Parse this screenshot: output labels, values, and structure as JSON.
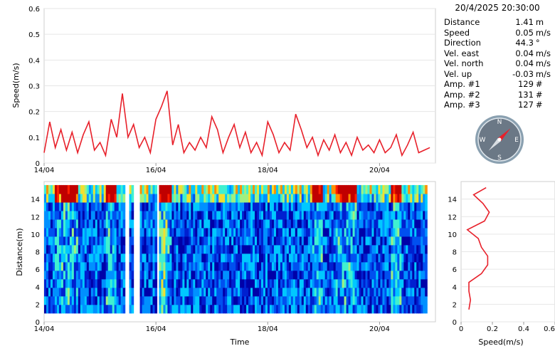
{
  "info": {
    "timestamp": "20/4/2025 20:30:00",
    "rows": [
      {
        "label": "Distance",
        "value": "1.41",
        "unit": "m"
      },
      {
        "label": "Speed",
        "value": "0.05",
        "unit": "m/s"
      },
      {
        "label": "Direction",
        "value": "44.3",
        "unit": "°"
      },
      {
        "label": "Vel. east",
        "value": "0.04",
        "unit": "m/s"
      },
      {
        "label": "Vel. north",
        "value": "0.04",
        "unit": "m/s"
      },
      {
        "label": "Vel. up",
        "value": "-0.03",
        "unit": "m/s"
      },
      {
        "label": "Amp. #1",
        "value": "129",
        "unit": "#"
      },
      {
        "label": "Amp. #2",
        "value": "131",
        "unit": "#"
      },
      {
        "label": "Amp. #3",
        "value": "127",
        "unit": "#"
      }
    ]
  },
  "compass": {
    "labels": {
      "n": "N",
      "e": "E",
      "s": "S",
      "w": "W"
    },
    "direction_deg": 44.3,
    "face_color": "#6b7886",
    "needle_color": "#e8202a"
  },
  "chart_data": [
    {
      "type": "line",
      "ylabel": "Speed(m/s)",
      "xlabel": "",
      "ylim": [
        0,
        0.6
      ],
      "yticks": [
        "0",
        "0.1",
        "0.2",
        "0.3",
        "0.4",
        "0.5",
        "0.6"
      ],
      "xticks": [
        "14/04",
        "16/04",
        "18/04",
        "20/04"
      ],
      "x_range_days": [
        14.0,
        21.0
      ],
      "grid": "horizontal",
      "color": "#e8202a",
      "series": [
        {
          "x": [
            14.0,
            14.1,
            14.2,
            14.3,
            14.4,
            14.5,
            14.6,
            14.7,
            14.8,
            14.9,
            15.0,
            15.1,
            15.2,
            15.3,
            15.4,
            15.5,
            15.6,
            15.7,
            15.8,
            15.9,
            16.0,
            16.1,
            16.2,
            16.3,
            16.4,
            16.5,
            16.6,
            16.7,
            16.8,
            16.9,
            17.0,
            17.1,
            17.2,
            17.3,
            17.4,
            17.5,
            17.6,
            17.7,
            17.8,
            17.9,
            18.0,
            18.1,
            18.2,
            18.3,
            18.4,
            18.5,
            18.6,
            18.7,
            18.8,
            18.9,
            19.0,
            19.1,
            19.2,
            19.3,
            19.4,
            19.5,
            19.6,
            19.7,
            19.8,
            19.9,
            20.0,
            20.1,
            20.2,
            20.3,
            20.4,
            20.5,
            20.6,
            20.7,
            20.8,
            20.9
          ],
          "y": [
            0.04,
            0.16,
            0.06,
            0.13,
            0.05,
            0.12,
            0.04,
            0.11,
            0.16,
            0.05,
            0.08,
            0.03,
            0.17,
            0.1,
            0.27,
            0.1,
            0.15,
            0.06,
            0.1,
            0.04,
            0.17,
            0.22,
            0.28,
            0.07,
            0.15,
            0.04,
            0.08,
            0.05,
            0.1,
            0.06,
            0.18,
            0.13,
            0.04,
            0.1,
            0.15,
            0.06,
            0.12,
            0.04,
            0.08,
            0.03,
            0.16,
            0.11,
            0.04,
            0.08,
            0.05,
            0.19,
            0.13,
            0.06,
            0.1,
            0.03,
            0.09,
            0.05,
            0.11,
            0.04,
            0.08,
            0.03,
            0.1,
            0.05,
            0.07,
            0.04,
            0.09,
            0.04,
            0.06,
            0.11,
            0.03,
            0.07,
            0.12,
            0.04,
            0.05,
            0.06
          ]
        }
      ]
    },
    {
      "type": "heatmap",
      "xlabel": "Time",
      "ylabel": "Distance(m)",
      "ylim": [
        0,
        16
      ],
      "yticks": [
        "0",
        "2",
        "4",
        "6",
        "8",
        "10",
        "12",
        "14"
      ],
      "xticks": [
        "14/04",
        "16/04",
        "18/04",
        "20/04"
      ],
      "x_range_days": [
        14.0,
        21.0
      ],
      "colorscale": [
        "#0000a8",
        "#0020d0",
        "#0050f0",
        "#0090ff",
        "#00c8ff",
        "#40f0d0",
        "#a0f080",
        "#f0e030",
        "#ff9000",
        "#ff2000",
        "#c00000"
      ],
      "gaps_days": [
        [
          15.45,
          15.52
        ],
        [
          15.6,
          15.7
        ],
        [
          16.0,
          16.05
        ]
      ]
    },
    {
      "type": "line",
      "xlabel": "Speed(m/s)",
      "ylabel": "",
      "xlim": [
        0,
        0.6
      ],
      "xticks": [
        "0",
        "0.2",
        "0.4",
        "0.6"
      ],
      "ylim": [
        0,
        16
      ],
      "yticks": [
        "0",
        "2",
        "4",
        "6",
        "8",
        "10",
        "12",
        "14"
      ],
      "grid": "horizontal",
      "color": "#e8202a",
      "series": [
        {
          "y": [
            1.4,
            2.5,
            3.5,
            4.5,
            5.5,
            6.5,
            7.5,
            8.5,
            9.5,
            10.5,
            11.5,
            12.5,
            13.5,
            14.5,
            15.3
          ],
          "x": [
            0.05,
            0.06,
            0.05,
            0.05,
            0.13,
            0.17,
            0.17,
            0.13,
            0.11,
            0.04,
            0.15,
            0.18,
            0.14,
            0.08,
            0.16
          ]
        }
      ]
    }
  ]
}
